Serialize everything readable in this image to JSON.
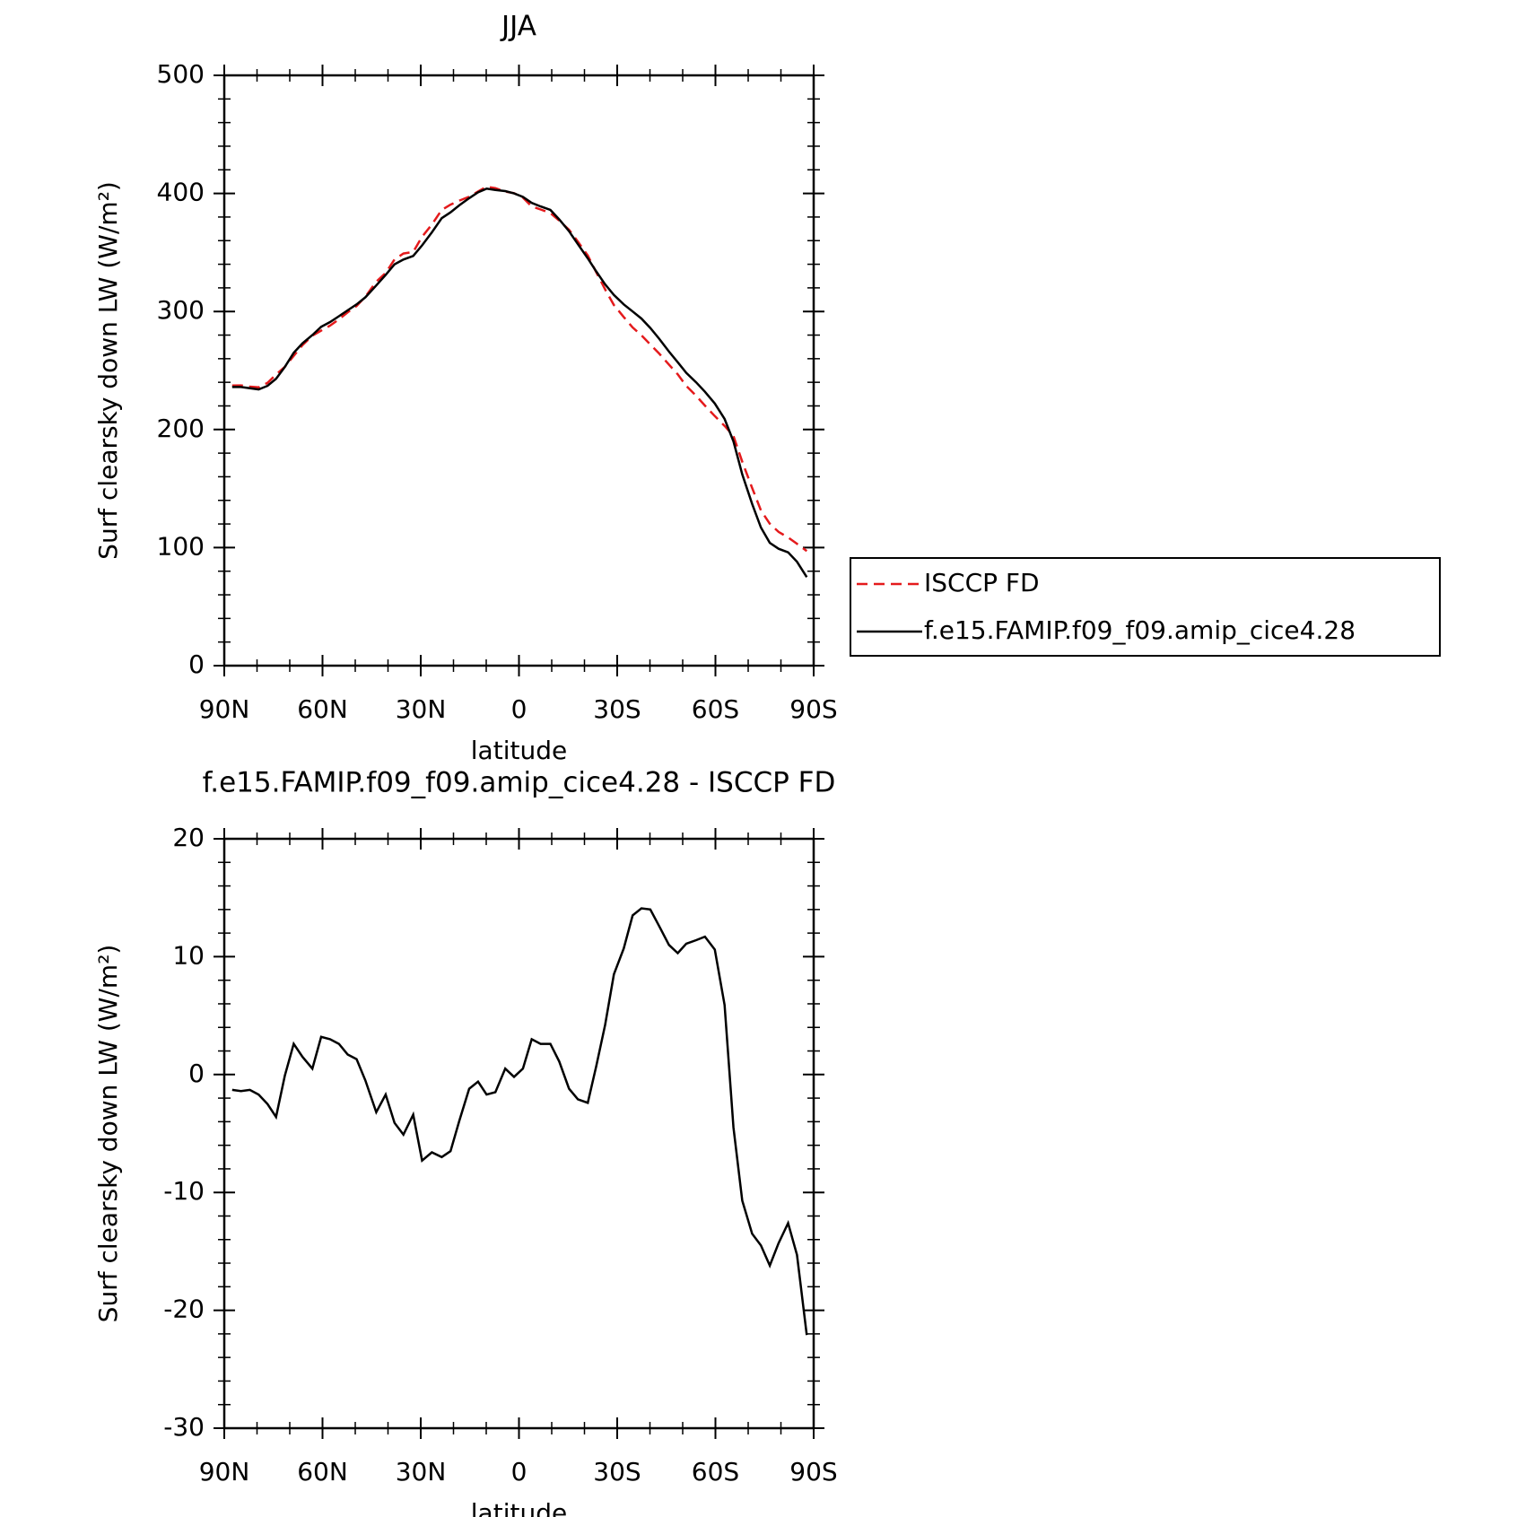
{
  "chart_data": [
    {
      "type": "line",
      "title": "JJA",
      "xlabel": "latitude",
      "ylabel": "Surf clearsky down LW (W/m²)",
      "x": [
        87.6,
        84.9,
        82.2,
        79.5,
        76.8,
        74.2,
        71.5,
        68.8,
        66.1,
        63.1,
        60.4,
        57.7,
        55.0,
        52.3,
        49.6,
        46.9,
        43.6,
        40.7,
        38.0,
        35.3,
        32.3,
        29.6,
        26.6,
        23.6,
        20.9,
        18.2,
        15.2,
        12.5,
        9.9,
        7.2,
        4.2,
        1.5,
        -1.2,
        -3.9,
        -6.6,
        -9.6,
        -12.3,
        -15.3,
        -18.0,
        -21.0,
        -23.6,
        -26.3,
        -29.0,
        -32.0,
        -34.7,
        -37.4,
        -40.1,
        -42.8,
        -45.8,
        -48.5,
        -51.1,
        -54.1,
        -56.8,
        -59.8,
        -62.8,
        -65.5,
        -68.2,
        -71.2,
        -73.9,
        -76.6,
        -79.3,
        -82.2,
        -84.9,
        -87.9
      ],
      "series": [
        {
          "name": "ISCCP FD",
          "color": "#e41a1c",
          "dash": "dashed",
          "values": [
            237.3,
            237.4,
            236.3,
            235.7,
            239.5,
            246.6,
            253.1,
            262.4,
            271.5,
            279.5,
            283.8,
            288,
            293.4,
            299.3,
            304.7,
            312.5,
            325.2,
            332.7,
            344.1,
            349.1,
            350.4,
            363.3,
            373.6,
            386,
            390.5,
            393.9,
            397.2,
            401.6,
            405.7,
            404.5,
            401.5,
            400.2,
            396.5,
            389,
            386.4,
            383.4,
            376.9,
            369.2,
            359.1,
            347.4,
            333.3,
            318.8,
            305.5,
            295.3,
            286.5,
            279.9,
            272,
            264.4,
            255,
            246.7,
            236.9,
            228.6,
            220.3,
            211.4,
            203.1,
            194.5,
            172.7,
            150.5,
            131.5,
            120.2,
            113.3,
            108.6,
            103.3,
            97.1
          ]
        },
        {
          "name": "f.e15.FAMIP.f09_f09.amip_cice4.28",
          "color": "#000000",
          "dash": "solid",
          "values": [
            236,
            236,
            235,
            234,
            237,
            243,
            253,
            265,
            273,
            280,
            287,
            291,
            296,
            301,
            306,
            312,
            322,
            331,
            340,
            344,
            347,
            356,
            367,
            379,
            384,
            390,
            396,
            401,
            404,
            403,
            402,
            400,
            397,
            392,
            389,
            386,
            378,
            368,
            357,
            345,
            334,
            323,
            314,
            306,
            300,
            294,
            286,
            277,
            266,
            257,
            248,
            240,
            232,
            222,
            209,
            190,
            162,
            137,
            117,
            104,
            99,
            96,
            88,
            75
          ]
        }
      ],
      "xlim": [
        90,
        -90
      ],
      "xticks": [
        {
          "value": 90,
          "label": "90N"
        },
        {
          "value": 60,
          "label": "60N"
        },
        {
          "value": 30,
          "label": "30N"
        },
        0,
        {
          "value": -30,
          "label": "30S"
        },
        {
          "value": -60,
          "label": "60S"
        },
        {
          "value": -90,
          "label": "90S"
        }
      ],
      "ylim": [
        0,
        500
      ],
      "yticks": [
        0,
        100,
        200,
        300,
        400,
        500
      ],
      "legend": "outside right"
    },
    {
      "type": "line",
      "title": "f.e15.FAMIP.f09_f09.amip_cice4.28 - ISCCP FD",
      "xlabel": "latitude",
      "ylabel": "Surf clearsky down LW (W/m²)",
      "x": [
        87.6,
        84.9,
        82.2,
        79.5,
        76.8,
        74.2,
        71.5,
        68.8,
        66.1,
        63.1,
        60.4,
        57.7,
        55.0,
        52.3,
        49.6,
        46.9,
        43.6,
        40.7,
        38.0,
        35.3,
        32.3,
        29.6,
        26.6,
        23.6,
        20.9,
        18.2,
        15.2,
        12.5,
        9.9,
        7.2,
        4.2,
        1.5,
        -1.2,
        -3.9,
        -6.6,
        -9.6,
        -12.3,
        -15.3,
        -18.0,
        -21.0,
        -23.6,
        -26.3,
        -29.0,
        -32.0,
        -34.7,
        -37.4,
        -40.1,
        -42.8,
        -45.8,
        -48.5,
        -51.1,
        -54.1,
        -56.8,
        -59.8,
        -62.8,
        -65.5,
        -68.2,
        -71.2,
        -73.9,
        -76.6,
        -79.3,
        -82.2,
        -84.9,
        -87.9
      ],
      "series": [
        {
          "color": "#000000",
          "dash": "solid",
          "values": [
            -1.3,
            -1.4,
            -1.3,
            -1.7,
            -2.5,
            -3.6,
            -0.1,
            2.6,
            1.5,
            0.5,
            3.2,
            3.0,
            2.6,
            1.7,
            1.3,
            -0.5,
            -3.2,
            -1.7,
            -4.1,
            -5.1,
            -3.4,
            -7.3,
            -6.6,
            -7.0,
            -6.5,
            -3.9,
            -1.2,
            -0.6,
            -1.7,
            -1.5,
            0.5,
            -0.2,
            0.5,
            3.0,
            2.6,
            2.6,
            1.1,
            -1.2,
            -2.1,
            -2.4,
            0.7,
            4.2,
            8.5,
            10.7,
            13.5,
            14.1,
            14.0,
            12.6,
            11.0,
            10.3,
            11.1,
            11.4,
            11.7,
            10.6,
            5.9,
            -4.5,
            -10.7,
            -13.5,
            -14.5,
            -16.2,
            -14.3,
            -12.6,
            -15.3,
            -22.1
          ]
        }
      ],
      "xlim": [
        90,
        -90
      ],
      "xticks": [
        {
          "value": 90,
          "label": "90N"
        },
        {
          "value": 60,
          "label": "60N"
        },
        {
          "value": 30,
          "label": "30N"
        },
        0,
        {
          "value": -30,
          "label": "30S"
        },
        {
          "value": -60,
          "label": "60S"
        },
        {
          "value": -90,
          "label": "90S"
        }
      ],
      "ylim": [
        -30,
        20
      ],
      "yticks": [
        -30,
        -20,
        -10,
        0,
        10,
        20
      ]
    }
  ]
}
